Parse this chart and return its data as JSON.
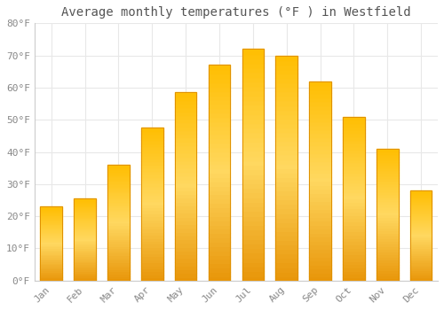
{
  "title": "Average monthly temperatures (°F ) in Westfield",
  "months": [
    "Jan",
    "Feb",
    "Mar",
    "Apr",
    "May",
    "Jun",
    "Jul",
    "Aug",
    "Sep",
    "Oct",
    "Nov",
    "Dec"
  ],
  "values": [
    23,
    25.5,
    36,
    47.5,
    58.5,
    67,
    72,
    70,
    62,
    51,
    41,
    28
  ],
  "bar_color": "#FFB300",
  "bar_edge_color": "#E09000",
  "ylim": [
    0,
    80
  ],
  "yticks": [
    0,
    10,
    20,
    30,
    40,
    50,
    60,
    70,
    80
  ],
  "ytick_labels": [
    "0°F",
    "10°F",
    "20°F",
    "30°F",
    "40°F",
    "50°F",
    "60°F",
    "70°F",
    "80°F"
  ],
  "background_color": "#ffffff",
  "plot_background_color": "#ffffff",
  "grid_color": "#e8e8e8",
  "title_fontsize": 10,
  "tick_fontsize": 8,
  "tick_color": "#888888",
  "title_color": "#555555",
  "font_family": "monospace"
}
